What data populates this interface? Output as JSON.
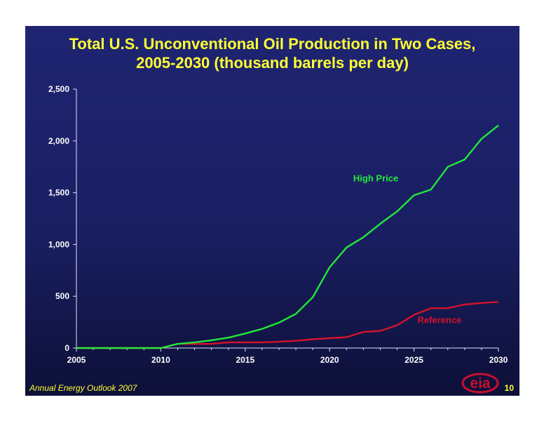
{
  "title_line1": "Total U.S. Unconventional Oil Production in Two Cases,",
  "title_line2": "2005-2030 (thousand barrels per day)",
  "footer": {
    "source": "Annual Energy Outlook 2007",
    "page": "10",
    "logo_text": "eia"
  },
  "colors": {
    "background": "#1c2166",
    "title": "#ffff33",
    "axis_text": "#ffffff",
    "high_price": "#22e83a",
    "reference": "#d4122c",
    "logo": "#c8102e"
  },
  "chart_data": {
    "type": "line",
    "title": "Total U.S. Unconventional Oil Production in Two Cases, 2005-2030 (thousand barrels per day)",
    "xlabel": "",
    "ylabel": "",
    "xlim": [
      2005,
      2030
    ],
    "ylim": [
      0,
      2500
    ],
    "x_ticks": [
      "2005",
      "2010",
      "2015",
      "2020",
      "2025",
      "2030"
    ],
    "y_ticks": [
      "0",
      "500",
      "1,000",
      "1,500",
      "2,000",
      "2,500"
    ],
    "grid": false,
    "x": [
      2005,
      2006,
      2007,
      2008,
      2009,
      2010,
      2011,
      2012,
      2013,
      2014,
      2015,
      2016,
      2017,
      2018,
      2019,
      2020,
      2021,
      2022,
      2023,
      2024,
      2025,
      2026,
      2027,
      2028,
      2029,
      2030
    ],
    "series": [
      {
        "name": "High Price",
        "color": "#22e83a",
        "values": [
          0,
          0,
          0,
          0,
          0,
          0,
          40,
          55,
          75,
          100,
          140,
          185,
          245,
          330,
          490,
          780,
          970,
          1070,
          1200,
          1320,
          1475,
          1530,
          1750,
          1820,
          2020,
          2150
        ]
      },
      {
        "name": "Reference",
        "color": "#d4122c",
        "values": [
          0,
          0,
          0,
          0,
          0,
          0,
          40,
          40,
          40,
          55,
          55,
          55,
          60,
          70,
          85,
          95,
          105,
          155,
          165,
          220,
          320,
          385,
          385,
          420,
          435,
          445
        ]
      }
    ]
  }
}
